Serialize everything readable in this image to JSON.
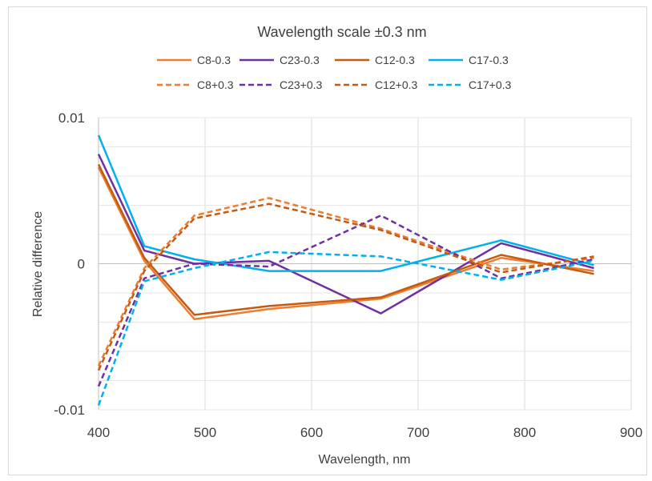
{
  "chart_data": {
    "type": "line",
    "title": "Wavelength scale ±0.3 nm",
    "xlabel": "Wavelength, nm",
    "ylabel": "Relative difference",
    "xlim": [
      400,
      900
    ],
    "ylim": [
      -0.01,
      0.01
    ],
    "x_ticks": [
      400,
      500,
      600,
      700,
      800,
      900
    ],
    "x_tick_labels": [
      "400",
      "500",
      "600",
      "700",
      "800",
      "900"
    ],
    "y_ticks": [
      -0.01,
      0,
      0.01
    ],
    "y_tick_labels": [
      "-0.01",
      "0",
      "0.01"
    ],
    "grid": true,
    "legend_placement": "top",
    "x": [
      400,
      443,
      490,
      560,
      665,
      778,
      865
    ],
    "series": [
      {
        "name": "C8-0.3",
        "color": "#ED7D31",
        "dash": "solid",
        "values": [
          0.0066,
          0.0002,
          -0.0038,
          -0.0031,
          -0.0024,
          0.0004,
          -0.0005
        ]
      },
      {
        "name": "C23-0.3",
        "color": "#7030A0",
        "dash": "solid",
        "values": [
          0.0075,
          0.0009,
          0.0,
          0.0002,
          -0.0034,
          0.0014,
          -0.0003
        ]
      },
      {
        "name": "C12-0.3",
        "color": "#C55A11",
        "dash": "solid",
        "values": [
          0.0068,
          0.0004,
          -0.0035,
          -0.0029,
          -0.0023,
          0.0006,
          -0.0007
        ]
      },
      {
        "name": "C17-0.3",
        "color": "#00B0F0",
        "dash": "solid",
        "values": [
          0.0088,
          0.0012,
          0.0003,
          -0.0005,
          -0.0005,
          0.0016,
          -0.0001
        ]
      },
      {
        "name": "C8+0.3",
        "color": "#ED7D31",
        "dash": "dashed",
        "values": [
          -0.007,
          -0.0003,
          0.0033,
          0.0045,
          0.0024,
          -0.0004,
          0.0004
        ]
      },
      {
        "name": "C23+0.3",
        "color": "#7030A0",
        "dash": "dashed",
        "values": [
          -0.0084,
          -0.001,
          0.0,
          -0.0002,
          0.0033,
          -0.001,
          0.0003
        ]
      },
      {
        "name": "C12+0.3",
        "color": "#C55A11",
        "dash": "dashed",
        "values": [
          -0.0073,
          -0.0005,
          0.0031,
          0.0041,
          0.0023,
          -0.0006,
          0.0005
        ]
      },
      {
        "name": "C17+0.3",
        "color": "#00B0F0",
        "dash": "dashed",
        "values": [
          -0.0097,
          -0.0012,
          -0.0003,
          0.0008,
          0.0005,
          -0.0011,
          0.0002
        ]
      }
    ]
  }
}
